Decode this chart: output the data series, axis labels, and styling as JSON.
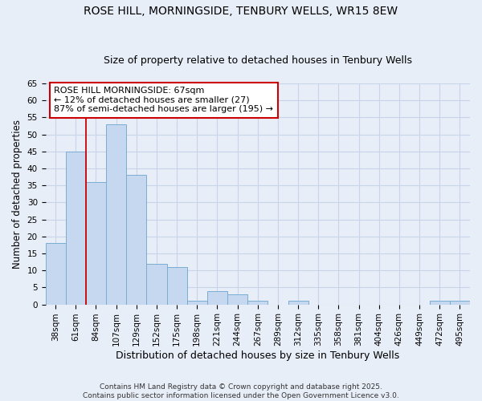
{
  "title": "ROSE HILL, MORNINGSIDE, TENBURY WELLS, WR15 8EW",
  "subtitle": "Size of property relative to detached houses in Tenbury Wells",
  "xlabel": "Distribution of detached houses by size in Tenbury Wells",
  "ylabel": "Number of detached properties",
  "categories": [
    "38sqm",
    "61sqm",
    "84sqm",
    "107sqm",
    "129sqm",
    "152sqm",
    "175sqm",
    "198sqm",
    "221sqm",
    "244sqm",
    "267sqm",
    "289sqm",
    "312sqm",
    "335sqm",
    "358sqm",
    "381sqm",
    "404sqm",
    "426sqm",
    "449sqm",
    "472sqm",
    "495sqm"
  ],
  "values": [
    18,
    45,
    36,
    53,
    38,
    12,
    11,
    1,
    4,
    3,
    1,
    0,
    1,
    0,
    0,
    0,
    0,
    0,
    0,
    1,
    1
  ],
  "bar_color": "#c5d8f0",
  "bar_edge_color": "#7aadd4",
  "annotation_box_text": "ROSE HILL MORNINGSIDE: 67sqm\n← 12% of detached houses are smaller (27)\n87% of semi-detached houses are larger (195) →",
  "annotation_box_color": "#ffffff",
  "annotation_box_edge_color": "#cc0000",
  "red_line_x": 1.5,
  "ylim": [
    0,
    65
  ],
  "grid_color": "#c8d4e8",
  "background_color": "#e8eef8",
  "footer_line1": "Contains HM Land Registry data © Crown copyright and database right 2025.",
  "footer_line2": "Contains public sector information licensed under the Open Government Licence v3.0.",
  "title_fontsize": 10,
  "subtitle_fontsize": 9,
  "tick_fontsize": 7.5,
  "xlabel_fontsize": 9,
  "ylabel_fontsize": 8.5,
  "annotation_fontsize": 8,
  "footer_fontsize": 6.5
}
